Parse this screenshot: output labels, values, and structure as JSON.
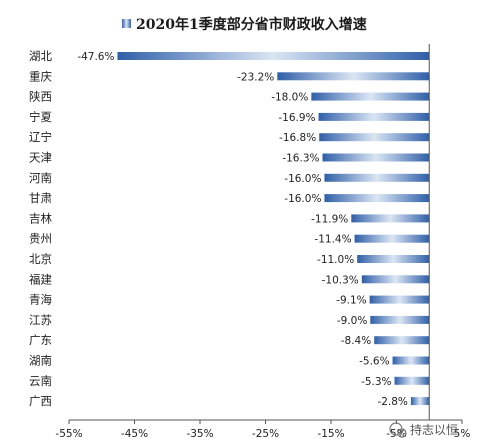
{
  "chart_data": {
    "type": "bar",
    "orientation": "horizontal",
    "title": "2020年1季度部分省市财政收入增速",
    "legend_marker": "■",
    "categories": [
      "湖北",
      "重庆",
      "陕西",
      "宁夏",
      "辽宁",
      "天津",
      "河南",
      "甘肃",
      "吉林",
      "贵州",
      "北京",
      "福建",
      "青海",
      "江苏",
      "广东",
      "湖南",
      "云南",
      "广西"
    ],
    "values": [
      -47.6,
      -23.2,
      -18.0,
      -16.9,
      -16.8,
      -16.3,
      -16.0,
      -16.0,
      -11.9,
      -11.4,
      -11.0,
      -10.3,
      -9.1,
      -9.0,
      -8.4,
      -5.6,
      -5.3,
      -2.8
    ],
    "value_labels": [
      "-47.6%",
      "-23.2%",
      "-18.0%",
      "-16.9%",
      "-16.8%",
      "-16.3%",
      "-16.0%",
      "-16.0%",
      "-11.9%",
      "-11.4%",
      "-11.0%",
      "-10.3%",
      "-9.1%",
      "-9.0%",
      "-8.4%",
      "-5.6%",
      "-5.3%",
      "-2.8%"
    ],
    "xlim": [
      -55,
      5
    ],
    "x_ticks": [
      -55,
      -45,
      -35,
      -25,
      -15,
      -5,
      5
    ],
    "x_tick_labels": [
      "-55%",
      "-45%",
      "-35%",
      "-25%",
      "-15%",
      "-5%",
      "5%"
    ],
    "grid": false,
    "bar_color": "#2f5fa8",
    "bar_color_light": "#dbe6f4"
  },
  "watermark": {
    "text": "持志以恒"
  }
}
